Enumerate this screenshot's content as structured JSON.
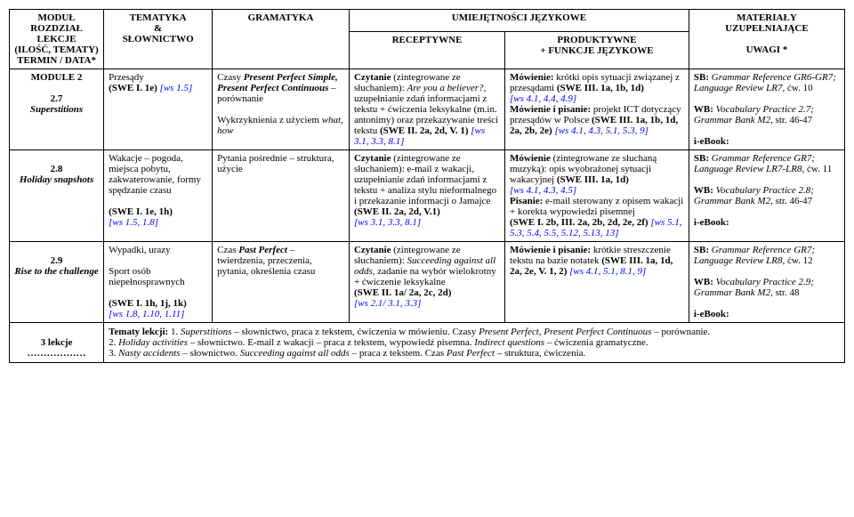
{
  "headers": {
    "col1_l1": "MODUŁ",
    "col1_l2": "ROZDZIAŁ",
    "col1_l3": "LEKCJE",
    "col1_l4": "(ILOŚĆ, TEMATY)",
    "col1_l5": "TERMIN / DATA*",
    "col2_l1": "TEMATYKA",
    "col2_l2": "&",
    "col2_l3": "SŁOWNICTWO",
    "col3": "GRAMATYKA",
    "col45_top": "UMIEJĘTNOŚCI JĘZYKOWE",
    "col4": "RECEPTYWNE",
    "col5_l1": "PRODUKTYWNE",
    "col5_l2": "+ FUNKCJE JĘZYKOWE",
    "col6_l1": "MATERIAŁY",
    "col6_l2": "UZUPEŁNIAJĄCE",
    "col6_l3": "UWAGI *"
  },
  "row1": {
    "module_l1": "MODULE 2",
    "module_l2": "2.7",
    "module_l3": "Superstitions",
    "tematyka_l1": "Przesądy",
    "tematyka_l2a": "(SWE I. 1e) ",
    "tematyka_l2b": "[ws 1.5]",
    "gram_l1": "Czasy ",
    "gram_l1b": "Present Perfect Simple, Present Perfect Continuous",
    "gram_l1c": " – porównanie",
    "gram_l2": "Wykrzyknienia z użyciem ",
    "gram_l2b": "what, how",
    "recep_l1a": "Czytanie",
    "recep_l1b": " (zintegrowane ze słuchaniem): ",
    "recep_l1c": "Are you a believer?",
    "recep_l1d": ", uzupełnianie zdań informacjami z tekstu + ćwiczenia leksykalne (m.in. antonimy) oraz przekazywanie treści tekstu ",
    "recep_l1e": "(SWE II. 2a, 2d, V. 1) ",
    "recep_l1f": "[ws 3.1, 3.3, 8.1]",
    "prod_l1a": "Mówienie:",
    "prod_l1b": " krótki opis sytuacji związanej z przesądami ",
    "prod_l1c": "(SWE III. 1a, 1b, 1d) ",
    "prod_l1d": "[ws 4.1, 4.4, 4.9]",
    "prod_l2a": "Mówienie i pisanie:",
    "prod_l2b": " projekt ICT dotyczący przesądów w Polsce ",
    "prod_l2c": "(SWE III. 1a, 1b, 1d, 2a, 2b, 2e) ",
    "prod_l2d": "[ws 4.1, 4.3, 5.1, 5.3, 9]",
    "mat_l1a": "SB:",
    "mat_l1b": " Grammar Reference GR6-GR7; Language Review LR7",
    "mat_l1c": ", ćw. 10",
    "mat_l2a": "WB:",
    "mat_l2b": " Vocabulary Practice 2.7; Grammar Bank M2",
    "mat_l2c": ", str. 46-47",
    "mat_l3": "i-eBook:"
  },
  "row2": {
    "module_l1": "2.8",
    "module_l2": "Holiday snapshots",
    "tematyka_l1": "Wakacje – pogoda, miejsca pobytu, zakwaterowanie, formy spędzanie czasu",
    "tematyka_l2a": "(SWE I. 1e, 1h) ",
    "tematyka_l2b": "[ws 1.5, 1.8]",
    "gram_l1": "Pytania pośrednie – struktura, użycie",
    "recep_l1a": "Czytanie",
    "recep_l1b": " (zintegrowane ze słuchaniem): e-mail z wakacji, uzupełnianie zdań informacjami z tekstu + analiza stylu nieformalnego i przekazanie informacji o Jamajce ",
    "recep_l1c": "(SWE II. 2a, 2d, V.1) ",
    "recep_l1d": "[ws 3.1, 3.3, 8.1]",
    "prod_l1a": "Mówienie",
    "prod_l1b": " (zintegrowane ze słuchaną muzyką): opis wyobrażonej sytuacji wakacyjnej ",
    "prod_l1c": "(SWE III. 1a, 1d) ",
    "prod_l1d": "[ws 4.1, 4.3, 4.5]",
    "prod_l2a": "Pisanie:",
    "prod_l2b": " e-mail sterowany z opisem wakacji + korekta wypowiedzi pisemnej ",
    "prod_l2c": "(SWE I. 2b, III. 2a, 2b, 2d, 2e, 2f) ",
    "prod_l2d": "[ws 5.1, 5.3, 5.4, 5.5, 5.12, 5.13, 13]",
    "mat_l1a": "SB:",
    "mat_l1b": " Grammar Reference GR7; Language Review LR7-LR8",
    "mat_l1c": ", ćw. 11",
    "mat_l2a": "WB:",
    "mat_l2b": " Vocabulary Practice 2.8; Grammar Bank M2",
    "mat_l2c": ", str. 46-47",
    "mat_l3": "i-eBook:"
  },
  "row3": {
    "module_l1": "2.9",
    "module_l2": "Rise to the challenge",
    "tematyka_l1": "Wypadki, urazy",
    "tematyka_l2": "Sport osób niepełnosprawnych",
    "tematyka_l3a": "(SWE I. 1h, 1j, 1k) ",
    "tematyka_l3b": "[ws 1.8, 1.10, 1.11]",
    "gram_l1": "Czas ",
    "gram_l1b": "Past Perfect",
    "gram_l1c": " – twierdzenia, przeczenia, pytania, określenia czasu",
    "recep_l1a": "Czytanie",
    "recep_l1b": " (zintegrowane ze słuchaniem): ",
    "recep_l1c": "Succeeding against all odds",
    "recep_l1d": ", zadanie na wybór wielokrotny + ćwiczenie leksykalne ",
    "recep_l1e": "(SWE II. 1a/ 2a, 2c, 2d) ",
    "recep_l1f": "[ws 2.1/ 3.1, 3.3]",
    "prod_l1a": "Mówienie i pisanie:",
    "prod_l1b": " krótkie streszczenie tekstu na bazie notatek ",
    "prod_l1c": "(SWE III. 1a, 1d, 2a, 2e, V. 1, 2) ",
    "prod_l1d": "[ws 4.1, 5.1, 8.1, 9]",
    "mat_l1a": "SB:",
    "mat_l1b": " Grammar Reference GR7; Language Review LR8",
    "mat_l1c": ", ćw. 12",
    "mat_l2a": "WB:",
    "mat_l2b": " Vocabulary Practice 2.9; Grammar Bank M2",
    "mat_l2c": ", str. 48",
    "mat_l3": "i-eBook:"
  },
  "lessons": {
    "label_l1": "3 lekcje",
    "label_l2": "………………",
    "tematy_label": "Tematy lekcji:",
    "t1a": " 1. ",
    "t1b": "Superstitions",
    "t1c": " – słownictwo, praca z tekstem, ćwiczenia w mówieniu. Czasy ",
    "t1d": "Present Perfect, Present Perfect Continuous",
    "t1e": " – porównanie.",
    "t2a": "2. ",
    "t2b": "Holiday activities",
    "t2c": " – słownictwo. E-mail z wakacji – praca z tekstem, wypowiedź pisemna. ",
    "t2d": "Indirect questions",
    "t2e": " – ćwiczenia gramatyczne.",
    "t3a": "3. ",
    "t3b": "Nasty accidents",
    "t3c": " – słownictwo. ",
    "t3d": "Succeeding against all odds",
    "t3e": " – praca z tekstem. Czas ",
    "t3f": "Past Perfect",
    "t3g": " – struktura, ćwiczenia."
  }
}
